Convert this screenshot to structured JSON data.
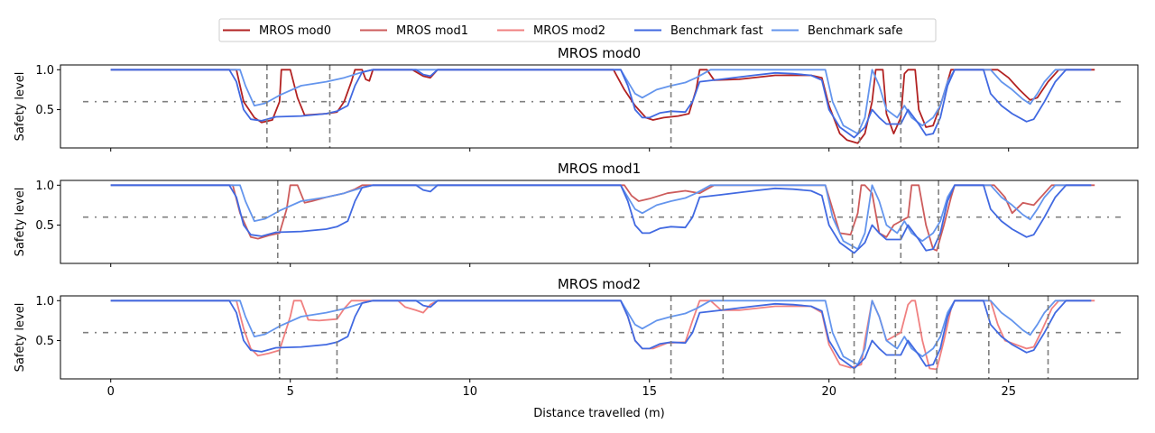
{
  "chart_data": {
    "type": "line",
    "xlabel": "Distance travelled (m)",
    "ylabel": "Safety level",
    "xlim": [
      -1.4,
      28.6
    ],
    "ylim": [
      0.02,
      1.06
    ],
    "xticks": [
      0,
      5,
      10,
      15,
      20,
      25
    ],
    "yticks": [
      0.5,
      1.0
    ],
    "xtick_labels": [
      "0",
      "5",
      "10",
      "15",
      "20",
      "25"
    ],
    "ytick_labels": [
      "0.5",
      "1.0"
    ],
    "threshold": 0.6,
    "legend": {
      "placement": "top-center",
      "entries": [
        {
          "label": "MROS mod0",
          "color": "#b22222"
        },
        {
          "label": "MROS mod1",
          "color": "#cd5c5c"
        },
        {
          "label": "MROS mod2",
          "color": "#f08080"
        },
        {
          "label": "Benchmark fast",
          "color": "#4169e1"
        },
        {
          "label": "Benchmark safe",
          "color": "#6495ed"
        }
      ]
    },
    "benchmark_fast": {
      "name": "Benchmark fast",
      "color": "#4169e1",
      "points": [
        [
          0,
          1
        ],
        [
          3.3,
          1
        ],
        [
          3.5,
          0.85
        ],
        [
          3.7,
          0.5
        ],
        [
          3.9,
          0.38
        ],
        [
          4.2,
          0.36
        ],
        [
          4.6,
          0.41
        ],
        [
          5.3,
          0.42
        ],
        [
          6.0,
          0.45
        ],
        [
          6.3,
          0.48
        ],
        [
          6.6,
          0.55
        ],
        [
          6.8,
          0.8
        ],
        [
          7.0,
          0.97
        ],
        [
          7.3,
          1
        ],
        [
          8.5,
          1
        ],
        [
          8.7,
          0.94
        ],
        [
          8.9,
          0.92
        ],
        [
          9.1,
          1
        ],
        [
          14.2,
          1
        ],
        [
          14.4,
          0.8
        ],
        [
          14.6,
          0.5
        ],
        [
          14.8,
          0.4
        ],
        [
          15.0,
          0.4
        ],
        [
          15.3,
          0.46
        ],
        [
          15.6,
          0.48
        ],
        [
          16.0,
          0.47
        ],
        [
          16.2,
          0.6
        ],
        [
          16.4,
          0.85
        ],
        [
          17.0,
          0.88
        ],
        [
          17.9,
          0.93
        ],
        [
          18.5,
          0.96
        ],
        [
          19.0,
          0.95
        ],
        [
          19.5,
          0.93
        ],
        [
          19.8,
          0.87
        ],
        [
          20.0,
          0.5
        ],
        [
          20.3,
          0.28
        ],
        [
          20.7,
          0.15
        ],
        [
          21.0,
          0.28
        ],
        [
          21.2,
          0.5
        ],
        [
          21.4,
          0.4
        ],
        [
          21.6,
          0.32
        ],
        [
          22.0,
          0.32
        ],
        [
          22.2,
          0.5
        ],
        [
          22.5,
          0.32
        ],
        [
          22.7,
          0.18
        ],
        [
          22.9,
          0.2
        ],
        [
          23.1,
          0.4
        ],
        [
          23.3,
          0.8
        ],
        [
          23.5,
          1
        ],
        [
          24.3,
          1
        ],
        [
          24.5,
          0.7
        ],
        [
          24.8,
          0.55
        ],
        [
          25.1,
          0.45
        ],
        [
          25.5,
          0.35
        ],
        [
          25.7,
          0.38
        ],
        [
          26.0,
          0.6
        ],
        [
          26.3,
          0.85
        ],
        [
          26.6,
          1
        ],
        [
          27.3,
          1
        ]
      ]
    },
    "benchmark_safe": {
      "name": "Benchmark safe",
      "color": "#6495ed",
      "points": [
        [
          0,
          1
        ],
        [
          3.6,
          1
        ],
        [
          3.75,
          0.8
        ],
        [
          4.0,
          0.55
        ],
        [
          4.3,
          0.58
        ],
        [
          4.7,
          0.68
        ],
        [
          5.3,
          0.8
        ],
        [
          6.0,
          0.85
        ],
        [
          6.5,
          0.9
        ],
        [
          7.0,
          0.97
        ],
        [
          7.3,
          1
        ],
        [
          14.2,
          1
        ],
        [
          14.4,
          0.85
        ],
        [
          14.6,
          0.7
        ],
        [
          14.8,
          0.65
        ],
        [
          15.2,
          0.75
        ],
        [
          15.6,
          0.8
        ],
        [
          16.0,
          0.84
        ],
        [
          16.3,
          0.9
        ],
        [
          16.7,
          1
        ],
        [
          19.9,
          1
        ],
        [
          20.1,
          0.6
        ],
        [
          20.4,
          0.3
        ],
        [
          20.8,
          0.2
        ],
        [
          21.0,
          0.4
        ],
        [
          21.2,
          1.0
        ],
        [
          21.4,
          0.8
        ],
        [
          21.6,
          0.5
        ],
        [
          21.9,
          0.4
        ],
        [
          22.1,
          0.55
        ],
        [
          22.3,
          0.4
        ],
        [
          22.6,
          0.3
        ],
        [
          22.9,
          0.4
        ],
        [
          23.1,
          0.55
        ],
        [
          23.3,
          0.85
        ],
        [
          23.5,
          1
        ],
        [
          24.5,
          1
        ],
        [
          24.8,
          0.85
        ],
        [
          25.1,
          0.75
        ],
        [
          25.4,
          0.63
        ],
        [
          25.6,
          0.57
        ],
        [
          25.8,
          0.7
        ],
        [
          26.0,
          0.85
        ],
        [
          26.3,
          1
        ],
        [
          27.3,
          1
        ]
      ]
    },
    "panels": [
      {
        "title": "MROS mod0",
        "mros": {
          "name": "MROS mod0",
          "color": "#b22222",
          "points": [
            [
              0,
              1
            ],
            [
              3.5,
              1
            ],
            [
              3.7,
              0.6
            ],
            [
              4.0,
              0.4
            ],
            [
              4.2,
              0.34
            ],
            [
              4.5,
              0.37
            ],
            [
              4.7,
              0.6
            ],
            [
              4.75,
              1
            ],
            [
              5.0,
              1
            ],
            [
              5.2,
              0.65
            ],
            [
              5.4,
              0.43
            ],
            [
              6.0,
              0.45
            ],
            [
              6.3,
              0.47
            ],
            [
              6.5,
              0.6
            ],
            [
              6.7,
              0.85
            ],
            [
              6.8,
              1
            ],
            [
              7.0,
              1
            ],
            [
              7.1,
              0.88
            ],
            [
              7.2,
              0.86
            ],
            [
              7.3,
              1
            ],
            [
              8.4,
              1
            ],
            [
              8.7,
              0.92
            ],
            [
              8.9,
              0.9
            ],
            [
              9.1,
              1
            ],
            [
              14.0,
              1
            ],
            [
              14.3,
              0.75
            ],
            [
              14.6,
              0.55
            ],
            [
              14.9,
              0.4
            ],
            [
              15.1,
              0.37
            ],
            [
              15.4,
              0.4
            ],
            [
              15.8,
              0.42
            ],
            [
              16.1,
              0.45
            ],
            [
              16.3,
              0.75
            ],
            [
              16.4,
              1
            ],
            [
              16.6,
              1
            ],
            [
              16.8,
              0.87
            ],
            [
              17.5,
              0.88
            ],
            [
              18.5,
              0.93
            ],
            [
              19.5,
              0.93
            ],
            [
              19.8,
              0.9
            ],
            [
              20.0,
              0.55
            ],
            [
              20.3,
              0.2
            ],
            [
              20.5,
              0.12
            ],
            [
              20.8,
              0.08
            ],
            [
              21.0,
              0.2
            ],
            [
              21.2,
              0.6
            ],
            [
              21.3,
              1
            ],
            [
              21.5,
              1
            ],
            [
              21.6,
              0.45
            ],
            [
              21.8,
              0.2
            ],
            [
              22.0,
              0.4
            ],
            [
              22.1,
              0.95
            ],
            [
              22.2,
              1
            ],
            [
              22.4,
              1
            ],
            [
              22.5,
              0.5
            ],
            [
              22.7,
              0.28
            ],
            [
              22.9,
              0.3
            ],
            [
              23.1,
              0.55
            ],
            [
              23.3,
              0.85
            ],
            [
              23.4,
              1
            ],
            [
              24.7,
              1
            ],
            [
              25.0,
              0.9
            ],
            [
              25.3,
              0.75
            ],
            [
              25.6,
              0.62
            ],
            [
              25.8,
              0.65
            ],
            [
              26.1,
              0.85
            ],
            [
              26.4,
              1
            ],
            [
              27.4,
              1
            ]
          ]
        },
        "markers": [
          4.35,
          6.1,
          15.6,
          20.85,
          22.0,
          23.05
        ]
      },
      {
        "title": "MROS mod1",
        "mros": {
          "name": "MROS mod1",
          "color": "#cd5c5c",
          "points": [
            [
              0,
              1
            ],
            [
              3.4,
              1
            ],
            [
              3.6,
              0.65
            ],
            [
              3.9,
              0.35
            ],
            [
              4.1,
              0.33
            ],
            [
              4.4,
              0.37
            ],
            [
              4.7,
              0.4
            ],
            [
              4.9,
              0.7
            ],
            [
              5.0,
              1
            ],
            [
              5.2,
              1
            ],
            [
              5.4,
              0.78
            ],
            [
              5.6,
              0.8
            ],
            [
              6.0,
              0.85
            ],
            [
              6.5,
              0.9
            ],
            [
              6.8,
              0.95
            ],
            [
              7.0,
              1
            ],
            [
              14.3,
              1
            ],
            [
              14.5,
              0.87
            ],
            [
              14.7,
              0.8
            ],
            [
              15.0,
              0.83
            ],
            [
              15.5,
              0.9
            ],
            [
              16.0,
              0.93
            ],
            [
              16.4,
              0.9
            ],
            [
              16.6,
              0.95
            ],
            [
              16.8,
              1
            ],
            [
              19.9,
              1
            ],
            [
              20.1,
              0.7
            ],
            [
              20.3,
              0.4
            ],
            [
              20.6,
              0.38
            ],
            [
              20.8,
              0.65
            ],
            [
              20.9,
              1
            ],
            [
              21.0,
              1
            ],
            [
              21.2,
              0.9
            ],
            [
              21.4,
              0.4
            ],
            [
              21.6,
              0.35
            ],
            [
              21.8,
              0.5
            ],
            [
              22.0,
              0.55
            ],
            [
              22.2,
              0.6
            ],
            [
              22.3,
              1
            ],
            [
              22.5,
              1
            ],
            [
              22.7,
              0.5
            ],
            [
              22.9,
              0.2
            ],
            [
              23.0,
              0.18
            ],
            [
              23.2,
              0.5
            ],
            [
              23.4,
              0.85
            ],
            [
              23.5,
              1
            ],
            [
              24.6,
              1
            ],
            [
              24.9,
              0.85
            ],
            [
              25.1,
              0.65
            ],
            [
              25.4,
              0.78
            ],
            [
              25.7,
              0.75
            ],
            [
              25.9,
              0.85
            ],
            [
              26.2,
              1
            ],
            [
              27.4,
              1
            ]
          ]
        },
        "markers": [
          4.65,
          20.65,
          22.0,
          23.05
        ]
      },
      {
        "title": "MROS mod2",
        "mros": {
          "name": "MROS mod2",
          "color": "#f08080",
          "points": [
            [
              0,
              1
            ],
            [
              3.5,
              1
            ],
            [
              3.7,
              0.65
            ],
            [
              3.9,
              0.4
            ],
            [
              4.1,
              0.31
            ],
            [
              4.4,
              0.34
            ],
            [
              4.7,
              0.38
            ],
            [
              5.0,
              0.8
            ],
            [
              5.1,
              1
            ],
            [
              5.3,
              1
            ],
            [
              5.5,
              0.76
            ],
            [
              5.8,
              0.75
            ],
            [
              6.3,
              0.77
            ],
            [
              6.5,
              0.9
            ],
            [
              6.7,
              1
            ],
            [
              8.0,
              1
            ],
            [
              8.2,
              0.92
            ],
            [
              8.5,
              0.88
            ],
            [
              8.7,
              0.85
            ],
            [
              8.9,
              0.95
            ],
            [
              9.1,
              1
            ],
            [
              14.2,
              1
            ],
            [
              14.4,
              0.8
            ],
            [
              14.6,
              0.5
            ],
            [
              14.8,
              0.4
            ],
            [
              15.1,
              0.4
            ],
            [
              15.5,
              0.47
            ],
            [
              16.0,
              0.48
            ],
            [
              16.2,
              0.75
            ],
            [
              16.4,
              1
            ],
            [
              16.7,
              1
            ],
            [
              17.0,
              0.88
            ],
            [
              17.5,
              0.88
            ],
            [
              18.5,
              0.93
            ],
            [
              19.5,
              0.93
            ],
            [
              19.8,
              0.85
            ],
            [
              20.0,
              0.45
            ],
            [
              20.3,
              0.2
            ],
            [
              20.6,
              0.16
            ],
            [
              20.9,
              0.2
            ],
            [
              21.0,
              0.5
            ],
            [
              21.2,
              1
            ],
            [
              21.4,
              0.8
            ],
            [
              21.6,
              0.5
            ],
            [
              21.8,
              0.55
            ],
            [
              22.0,
              0.6
            ],
            [
              22.2,
              0.95
            ],
            [
              22.3,
              1
            ],
            [
              22.4,
              1
            ],
            [
              22.6,
              0.5
            ],
            [
              22.8,
              0.15
            ],
            [
              23.0,
              0.14
            ],
            [
              23.2,
              0.5
            ],
            [
              23.4,
              0.9
            ],
            [
              23.5,
              1
            ],
            [
              24.5,
              1
            ],
            [
              24.7,
              0.7
            ],
            [
              24.9,
              0.5
            ],
            [
              25.2,
              0.45
            ],
            [
              25.5,
              0.4
            ],
            [
              25.7,
              0.42
            ],
            [
              25.9,
              0.6
            ],
            [
              26.2,
              0.9
            ],
            [
              26.4,
              1
            ],
            [
              27.4,
              1
            ]
          ]
        },
        "markers": [
          4.7,
          6.3,
          15.6,
          17.05,
          20.7,
          21.85,
          23.0,
          24.45,
          26.1
        ]
      }
    ]
  }
}
